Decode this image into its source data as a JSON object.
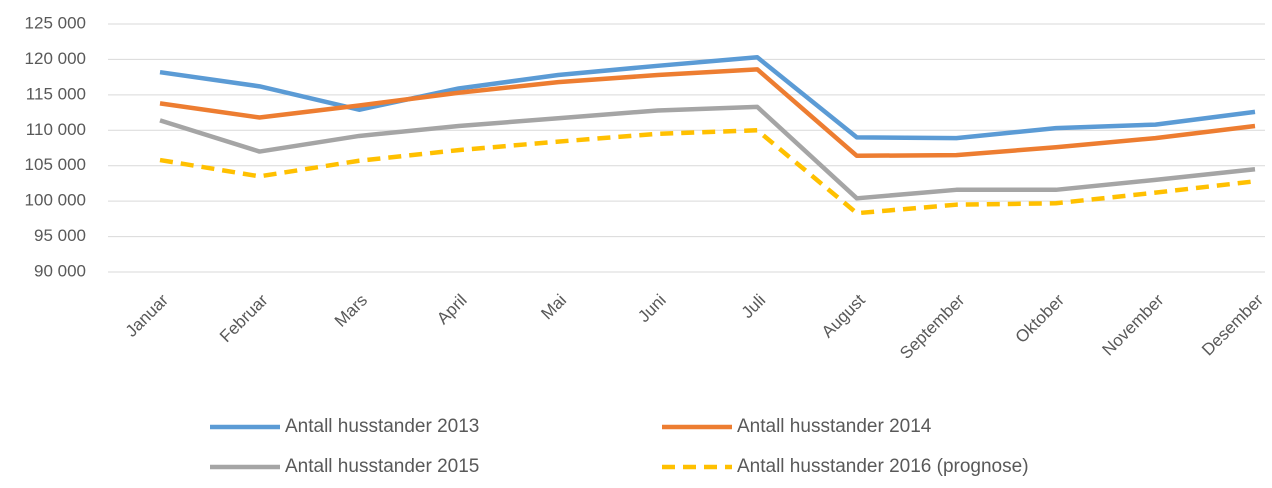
{
  "chart_data": {
    "type": "line",
    "categories": [
      "Januar",
      "Februar",
      "Mars",
      "April",
      "Mai",
      "Juni",
      "Juli",
      "August",
      "September",
      "Oktober",
      "November",
      "Desember"
    ],
    "series": [
      {
        "name": "Antall husstander 2013",
        "color": "#5b9bd5",
        "dashed": false,
        "values": [
          118200,
          116200,
          112900,
          115900,
          117800,
          119100,
          120300,
          109000,
          108900,
          110300,
          110800,
          112600
        ]
      },
      {
        "name": "Antall husstander 2014",
        "color": "#ed7d31",
        "dashed": false,
        "values": [
          113800,
          111800,
          113500,
          115300,
          116800,
          117800,
          118600,
          106400,
          106500,
          107600,
          108900,
          110600
        ]
      },
      {
        "name": "Antall husstander 2015",
        "color": "#a5a5a5",
        "dashed": false,
        "values": [
          111400,
          107000,
          109200,
          110600,
          111700,
          112800,
          113300,
          100400,
          101600,
          101600,
          103000,
          104500
        ]
      },
      {
        "name": "Antall husstander 2016 (prognose)",
        "color": "#ffc000",
        "dashed": true,
        "values": [
          105800,
          103500,
          105700,
          107200,
          108400,
          109500,
          110000,
          98300,
          99500,
          99700,
          101200,
          102800
        ]
      }
    ],
    "ylim": [
      90000,
      125000
    ],
    "yticks": [
      {
        "value": 90000,
        "label": "90 000"
      },
      {
        "value": 95000,
        "label": "95 000"
      },
      {
        "value": 100000,
        "label": "100 000"
      },
      {
        "value": 105000,
        "label": "105 000"
      },
      {
        "value": 110000,
        "label": "110 000"
      },
      {
        "value": 115000,
        "label": "115 000"
      },
      {
        "value": 120000,
        "label": "120 000"
      },
      {
        "value": 125000,
        "label": "125 000"
      }
    ],
    "grid": true,
    "legend": "bottom"
  }
}
